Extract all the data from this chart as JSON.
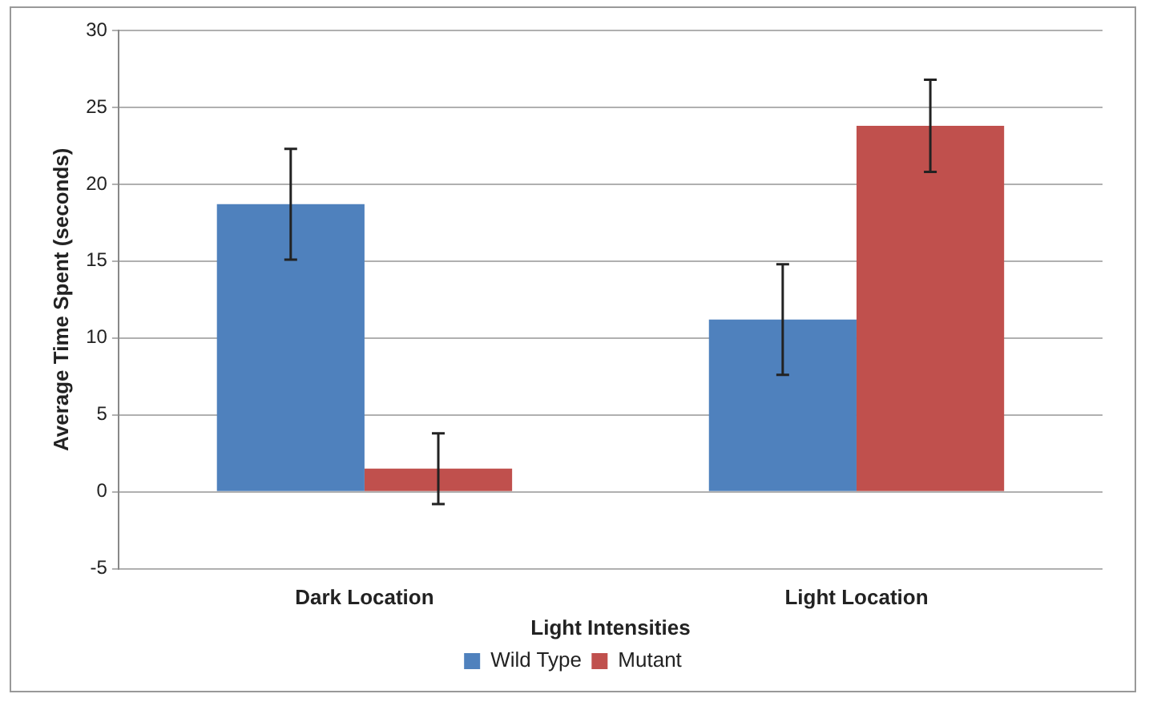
{
  "chart_data": {
    "type": "bar",
    "xlabel": "Light Intensities",
    "ylabel": "Average Time Spent (seconds)",
    "categories": [
      "Dark Location",
      "Light Location"
    ],
    "series": [
      {
        "name": "Wild Type",
        "color": "#4f81bd",
        "values": [
          18.7,
          11.2
        ],
        "errors": [
          3.6,
          3.6
        ]
      },
      {
        "name": "Mutant",
        "color": "#c0504d",
        "values": [
          1.5,
          23.8
        ],
        "errors": [
          2.3,
          3.0
        ]
      }
    ],
    "ylim": [
      -5,
      30
    ],
    "yticks": [
      -5,
      0,
      5,
      10,
      15,
      20,
      25,
      30
    ],
    "grid": "y",
    "legend": "bottom"
  }
}
